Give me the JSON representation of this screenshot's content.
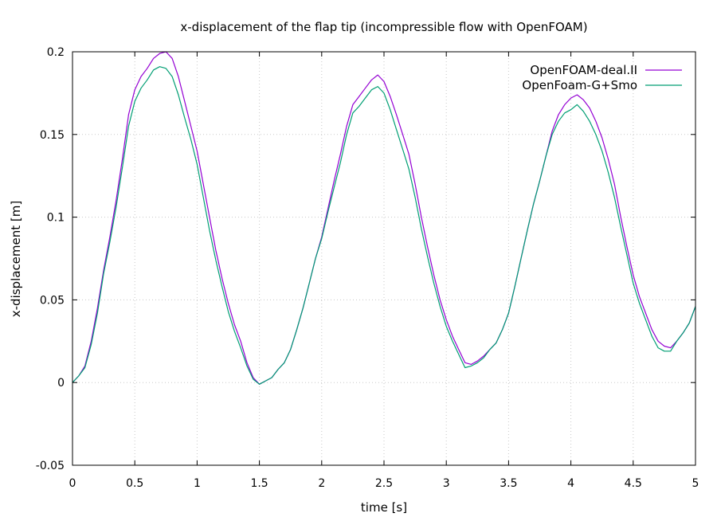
{
  "chart_data": {
    "type": "line",
    "title": "x-displacement of the flap tip (incompressible flow with OpenFOAM)",
    "xlabel": "time [s]",
    "ylabel": "x-displacement [m]",
    "xlim": [
      0,
      5
    ],
    "ylim": [
      -0.05,
      0.2
    ],
    "xticks": [
      0,
      0.5,
      1,
      1.5,
      2,
      2.5,
      3,
      3.5,
      4,
      4.5,
      5
    ],
    "xtick_labels": [
      "0",
      "0.5",
      "1",
      "1.5",
      "2",
      "2.5",
      "3",
      "3.5",
      "4",
      "4.5",
      "5"
    ],
    "yticks": [
      -0.05,
      0,
      0.05,
      0.1,
      0.15,
      0.2
    ],
    "ytick_labels": [
      "-0.05",
      "0",
      "0.05",
      "0.1",
      "0.15",
      "0.2"
    ],
    "grid": true,
    "legend_position": "top-right",
    "series": [
      {
        "name": "OpenFOAM-deal.II",
        "color": "#9400d3",
        "x": [
          0,
          0.05,
          0.1,
          0.15,
          0.2,
          0.25,
          0.3,
          0.35,
          0.4,
          0.45,
          0.5,
          0.55,
          0.6,
          0.65,
          0.7,
          0.75,
          0.8,
          0.85,
          0.9,
          0.95,
          1.0,
          1.05,
          1.1,
          1.15,
          1.2,
          1.25,
          1.3,
          1.35,
          1.4,
          1.45,
          1.5,
          1.55,
          1.6,
          1.65,
          1.7,
          1.75,
          1.8,
          1.85,
          1.9,
          1.95,
          2.0,
          2.05,
          2.1,
          2.15,
          2.2,
          2.25,
          2.3,
          2.35,
          2.4,
          2.45,
          2.5,
          2.55,
          2.6,
          2.65,
          2.7,
          2.75,
          2.8,
          2.85,
          2.9,
          2.95,
          3.0,
          3.05,
          3.1,
          3.15,
          3.2,
          3.25,
          3.3,
          3.35,
          3.4,
          3.45,
          3.5,
          3.55,
          3.6,
          3.65,
          3.7,
          3.75,
          3.8,
          3.85,
          3.9,
          3.95,
          4.0,
          4.05,
          4.1,
          4.15,
          4.2,
          4.25,
          4.3,
          4.35,
          4.4,
          4.45,
          4.5,
          4.55,
          4.6,
          4.65,
          4.7,
          4.75,
          4.8,
          4.85,
          4.9,
          4.95,
          5.0
        ],
        "y": [
          0,
          0.004,
          0.01,
          0.025,
          0.045,
          0.068,
          0.088,
          0.11,
          0.135,
          0.162,
          0.177,
          0.185,
          0.19,
          0.196,
          0.199,
          0.2,
          0.196,
          0.185,
          0.17,
          0.155,
          0.14,
          0.12,
          0.1,
          0.08,
          0.063,
          0.048,
          0.035,
          0.025,
          0.012,
          0.003,
          -0.001,
          0.001,
          0.003,
          0.008,
          0.012,
          0.02,
          0.032,
          0.045,
          0.06,
          0.075,
          0.088,
          0.105,
          0.122,
          0.138,
          0.155,
          0.168,
          0.173,
          0.178,
          0.183,
          0.186,
          0.182,
          0.173,
          0.162,
          0.15,
          0.138,
          0.12,
          0.1,
          0.082,
          0.065,
          0.05,
          0.038,
          0.028,
          0.02,
          0.012,
          0.011,
          0.013,
          0.016,
          0.02,
          0.024,
          0.032,
          0.042,
          0.058,
          0.075,
          0.092,
          0.108,
          0.122,
          0.137,
          0.152,
          0.162,
          0.168,
          0.172,
          0.174,
          0.171,
          0.166,
          0.158,
          0.148,
          0.135,
          0.12,
          0.1,
          0.082,
          0.065,
          0.052,
          0.042,
          0.032,
          0.025,
          0.022,
          0.021,
          0.025,
          0.03,
          0.036,
          0.046
        ]
      },
      {
        "name": "OpenFoam-G+Smo",
        "color": "#009e73",
        "x": [
          0,
          0.05,
          0.1,
          0.15,
          0.2,
          0.25,
          0.3,
          0.35,
          0.4,
          0.45,
          0.5,
          0.55,
          0.6,
          0.65,
          0.7,
          0.75,
          0.8,
          0.85,
          0.9,
          0.95,
          1.0,
          1.05,
          1.1,
          1.15,
          1.2,
          1.25,
          1.3,
          1.35,
          1.4,
          1.45,
          1.5,
          1.55,
          1.6,
          1.65,
          1.7,
          1.75,
          1.8,
          1.85,
          1.9,
          1.95,
          2.0,
          2.05,
          2.1,
          2.15,
          2.2,
          2.25,
          2.3,
          2.35,
          2.4,
          2.45,
          2.5,
          2.55,
          2.6,
          2.65,
          2.7,
          2.75,
          2.8,
          2.85,
          2.9,
          2.95,
          3.0,
          3.05,
          3.1,
          3.15,
          3.2,
          3.25,
          3.3,
          3.35,
          3.4,
          3.45,
          3.5,
          3.55,
          3.6,
          3.65,
          3.7,
          3.75,
          3.8,
          3.85,
          3.9,
          3.95,
          4.0,
          4.05,
          4.1,
          4.15,
          4.2,
          4.25,
          4.3,
          4.35,
          4.4,
          4.45,
          4.5,
          4.55,
          4.6,
          4.65,
          4.7,
          4.75,
          4.8,
          4.85,
          4.9,
          4.95,
          5.0
        ],
        "y": [
          0,
          0.004,
          0.009,
          0.023,
          0.042,
          0.066,
          0.085,
          0.106,
          0.13,
          0.155,
          0.17,
          0.178,
          0.183,
          0.189,
          0.191,
          0.19,
          0.185,
          0.174,
          0.16,
          0.147,
          0.132,
          0.112,
          0.092,
          0.074,
          0.058,
          0.043,
          0.031,
          0.021,
          0.01,
          0.002,
          -0.001,
          0.001,
          0.003,
          0.008,
          0.012,
          0.02,
          0.032,
          0.045,
          0.06,
          0.075,
          0.087,
          0.103,
          0.118,
          0.133,
          0.15,
          0.163,
          0.167,
          0.172,
          0.177,
          0.179,
          0.175,
          0.165,
          0.153,
          0.141,
          0.129,
          0.112,
          0.093,
          0.076,
          0.06,
          0.046,
          0.034,
          0.025,
          0.017,
          0.009,
          0.01,
          0.012,
          0.015,
          0.02,
          0.024,
          0.032,
          0.042,
          0.058,
          0.075,
          0.092,
          0.108,
          0.122,
          0.137,
          0.15,
          0.158,
          0.163,
          0.165,
          0.168,
          0.164,
          0.158,
          0.15,
          0.14,
          0.127,
          0.112,
          0.094,
          0.077,
          0.06,
          0.048,
          0.038,
          0.028,
          0.021,
          0.019,
          0.019,
          0.025,
          0.03,
          0.036,
          0.046
        ]
      }
    ]
  }
}
